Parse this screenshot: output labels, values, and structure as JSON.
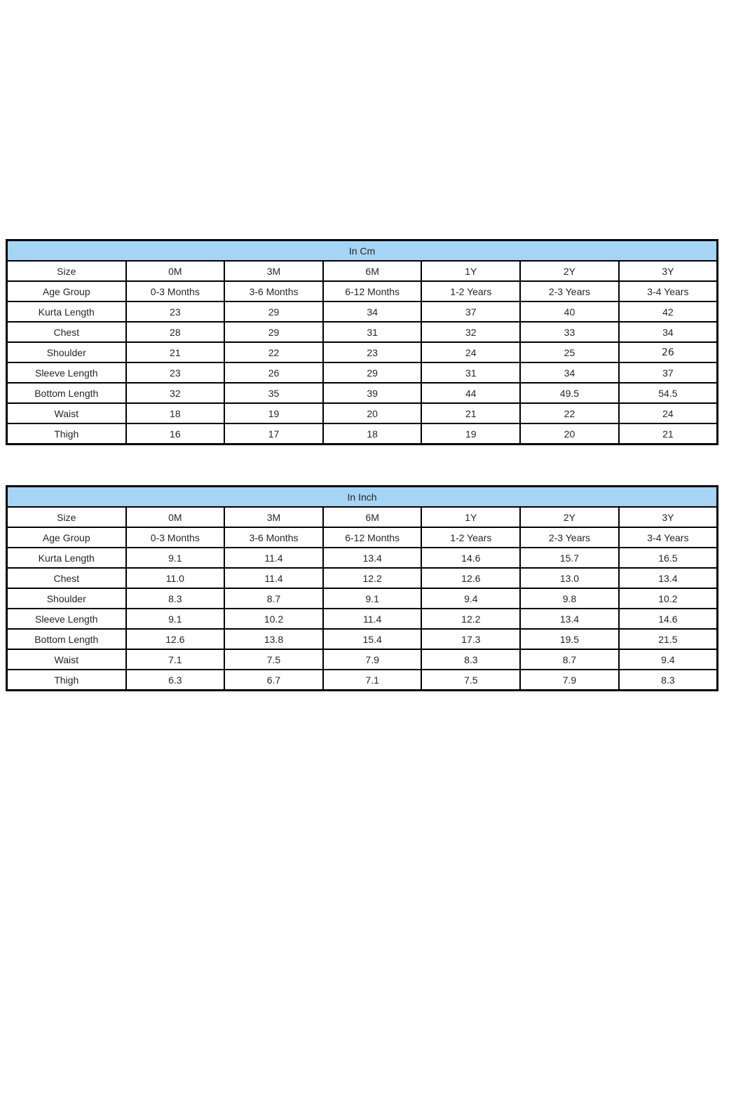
{
  "page": {
    "background": "#ffffff"
  },
  "colors": {
    "header_fill": "#a6d4f4",
    "border": "#000000",
    "text": "#000000"
  },
  "tables": [
    {
      "id": "cm",
      "title": "In Cm",
      "size_label": "Size",
      "age_label": "Age Group",
      "sizes": [
        "0M",
        "3M",
        "6M",
        "1Y",
        "2Y",
        "3Y"
      ],
      "age_groups": [
        "0-3 Months",
        "3-6 Months",
        "6-12 Months",
        "1-2 Years",
        "2-3 Years",
        "3-4 Years"
      ],
      "rows": [
        {
          "label": "Kurta Length",
          "values": [
            "23",
            "29",
            "34",
            "37",
            "40",
            "42"
          ]
        },
        {
          "label": "Chest",
          "values": [
            "28",
            "29",
            "31",
            "32",
            "33",
            "34"
          ]
        },
        {
          "label": "Shoulder",
          "values": [
            "21",
            "22",
            "23",
            "24",
            "25",
            "26"
          ]
        },
        {
          "label": "Sleeve Length",
          "values": [
            "23",
            "26",
            "29",
            "31",
            "34",
            "37"
          ]
        },
        {
          "label": "Bottom Length",
          "values": [
            "32",
            "35",
            "39",
            "44",
            "49.5",
            "54.5"
          ]
        },
        {
          "label": "Waist",
          "values": [
            "18",
            "19",
            "20",
            "21",
            "22",
            "24"
          ]
        },
        {
          "label": "Thigh",
          "values": [
            "16",
            "17",
            "18",
            "19",
            "20",
            "21"
          ]
        }
      ]
    },
    {
      "id": "inch",
      "title": "In Inch",
      "size_label": "Size",
      "age_label": "Age Group",
      "sizes": [
        "0M",
        "3M",
        "6M",
        "1Y",
        "2Y",
        "3Y"
      ],
      "age_groups": [
        "0-3 Months",
        "3-6 Months",
        "6-12 Months",
        "1-2 Years",
        "2-3 Years",
        "3-4 Years"
      ],
      "rows": [
        {
          "label": "Kurta Length",
          "values": [
            "9.1",
            "11.4",
            "13.4",
            "14.6",
            "15.7",
            "16.5"
          ]
        },
        {
          "label": "Chest",
          "values": [
            "11.0",
            "11.4",
            "12.2",
            "12.6",
            "13.0",
            "13.4"
          ]
        },
        {
          "label": "Shoulder",
          "values": [
            "8.3",
            "8.7",
            "9.1",
            "9.4",
            "9.8",
            "10.2"
          ]
        },
        {
          "label": "Sleeve Length",
          "values": [
            "9.1",
            "10.2",
            "11.4",
            "12.2",
            "13.4",
            "14.6"
          ]
        },
        {
          "label": "Bottom Length",
          "values": [
            "12.6",
            "13.8",
            "15.4",
            "17.3",
            "19.5",
            "21.5"
          ]
        },
        {
          "label": "Waist",
          "values": [
            "7.1",
            "7.5",
            "7.9",
            "8.3",
            "8.7",
            "9.4"
          ]
        },
        {
          "label": "Thigh",
          "values": [
            "6.3",
            "6.7",
            "7.1",
            "7.5",
            "7.9",
            "8.3"
          ]
        }
      ]
    }
  ]
}
